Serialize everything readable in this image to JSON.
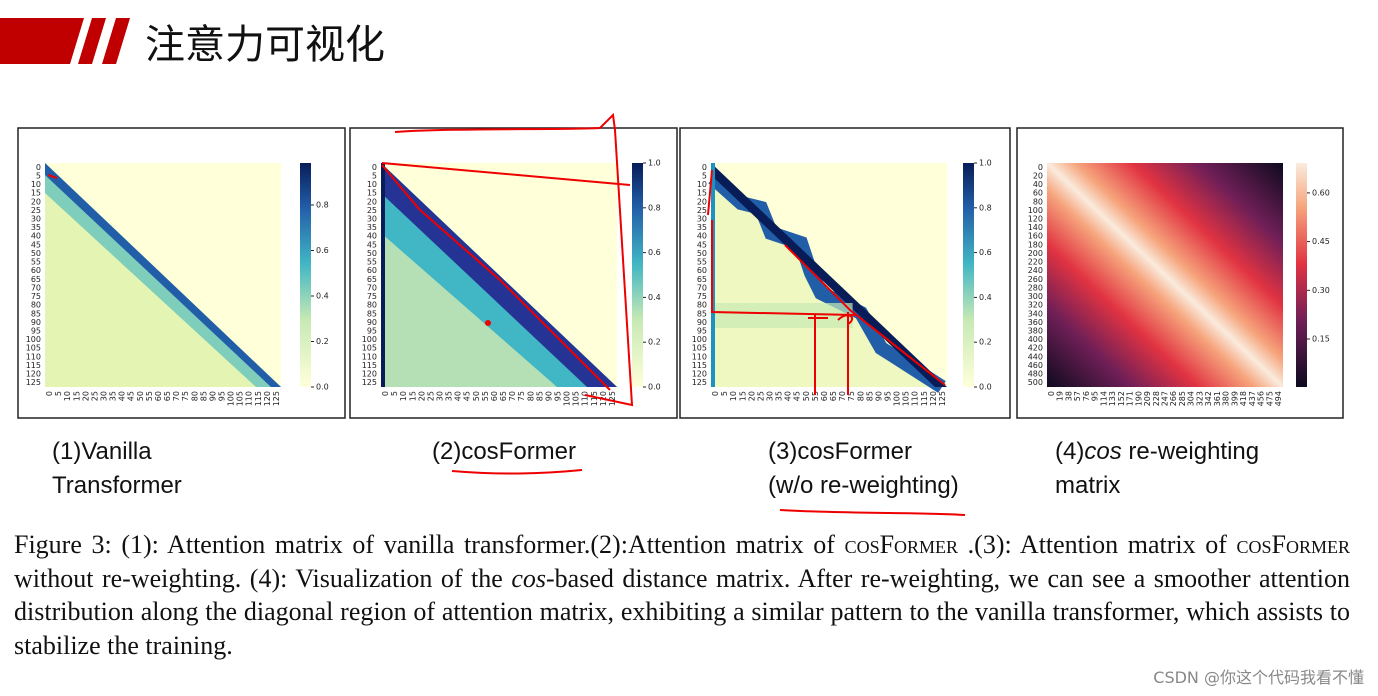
{
  "header": {
    "title": "注意力可视化"
  },
  "panels": [
    {
      "caption": [
        "(1)Vanilla",
        "Transformer"
      ],
      "y_ticks": [
        "0",
        "5",
        "10",
        "15",
        "20",
        "25",
        "30",
        "35",
        "40",
        "45",
        "50",
        "55",
        "60",
        "65",
        "70",
        "75",
        "80",
        "85",
        "90",
        "95",
        "100",
        "105",
        "110",
        "115",
        "120",
        "125"
      ],
      "x_ticks": [
        "0",
        "5",
        "10",
        "15",
        "20",
        "25",
        "30",
        "35",
        "40",
        "45",
        "50",
        "55",
        "60",
        "65",
        "70",
        "75",
        "80",
        "85",
        "90",
        "95",
        "100",
        "105",
        "110",
        "115",
        "120",
        "125"
      ],
      "colorbar_ticks": [
        "0.0",
        "0.2",
        "0.4",
        "0.6",
        "0.8"
      ]
    },
    {
      "caption": [
        "(2)cosFormer"
      ],
      "y_ticks": [
        "0",
        "5",
        "10",
        "15",
        "20",
        "25",
        "30",
        "35",
        "40",
        "45",
        "50",
        "55",
        "60",
        "65",
        "70",
        "75",
        "80",
        "85",
        "90",
        "95",
        "100",
        "105",
        "110",
        "115",
        "120",
        "125"
      ],
      "x_ticks": [
        "0",
        "5",
        "10",
        "15",
        "20",
        "25",
        "30",
        "35",
        "40",
        "45",
        "50",
        "55",
        "60",
        "65",
        "70",
        "75",
        "80",
        "85",
        "90",
        "95",
        "100",
        "105",
        "110",
        "115",
        "120",
        "125"
      ],
      "colorbar_ticks": [
        "0.0",
        "0.2",
        "0.4",
        "0.6",
        "0.8",
        "1.0"
      ]
    },
    {
      "caption": [
        "(3)cosFormer",
        "(w/o re-weighting)"
      ],
      "y_ticks": [
        "0",
        "5",
        "10",
        "15",
        "20",
        "25",
        "30",
        "35",
        "40",
        "45",
        "50",
        "55",
        "60",
        "65",
        "70",
        "75",
        "80",
        "85",
        "90",
        "95",
        "100",
        "105",
        "110",
        "115",
        "120",
        "125"
      ],
      "x_ticks": [
        "0",
        "5",
        "10",
        "15",
        "20",
        "25",
        "30",
        "35",
        "40",
        "45",
        "50",
        "55",
        "60",
        "65",
        "70",
        "75",
        "80",
        "85",
        "90",
        "95",
        "100",
        "105",
        "110",
        "115",
        "120",
        "125"
      ],
      "colorbar_ticks": [
        "0.0",
        "0.2",
        "0.4",
        "0.6",
        "0.8",
        "1.0"
      ]
    },
    {
      "caption": [
        "(4)",
        "cos",
        " re-weighting",
        "matrix"
      ],
      "y_ticks": [
        "0",
        "20",
        "40",
        "60",
        "80",
        "100",
        "120",
        "140",
        "160",
        "180",
        "200",
        "220",
        "240",
        "260",
        "280",
        "300",
        "320",
        "340",
        "360",
        "380",
        "400",
        "420",
        "440",
        "460",
        "480",
        "500"
      ],
      "x_ticks": [
        "0",
        "19",
        "38",
        "57",
        "76",
        "95",
        "114",
        "133",
        "152",
        "171",
        "190",
        "209",
        "228",
        "247",
        "266",
        "285",
        "304",
        "323",
        "342",
        "361",
        "380",
        "399",
        "418",
        "437",
        "456",
        "475",
        "494"
      ],
      "colorbar_ticks": [
        "0.15",
        "0.30",
        "0.45",
        "0.60"
      ]
    }
  ],
  "figure_caption": {
    "label": "Figure 3:",
    "parts": [
      " (1): Attention matrix of vanilla transformer.(2):Attention matrix of ",
      "cosFormer",
      " .(3): Attention matrix of ",
      "cosFormer",
      " without re-weighting. (4): Visualization of the ",
      "cos",
      "-based distance matrix. After re-weighting, we can see a smoother attention distribution along the diagonal region of attention matrix, exhibiting a similar pattern to the vanilla transformer, which assists to stabilize the training."
    ]
  },
  "watermark": "CSDN @你这个代码我看不懂"
}
